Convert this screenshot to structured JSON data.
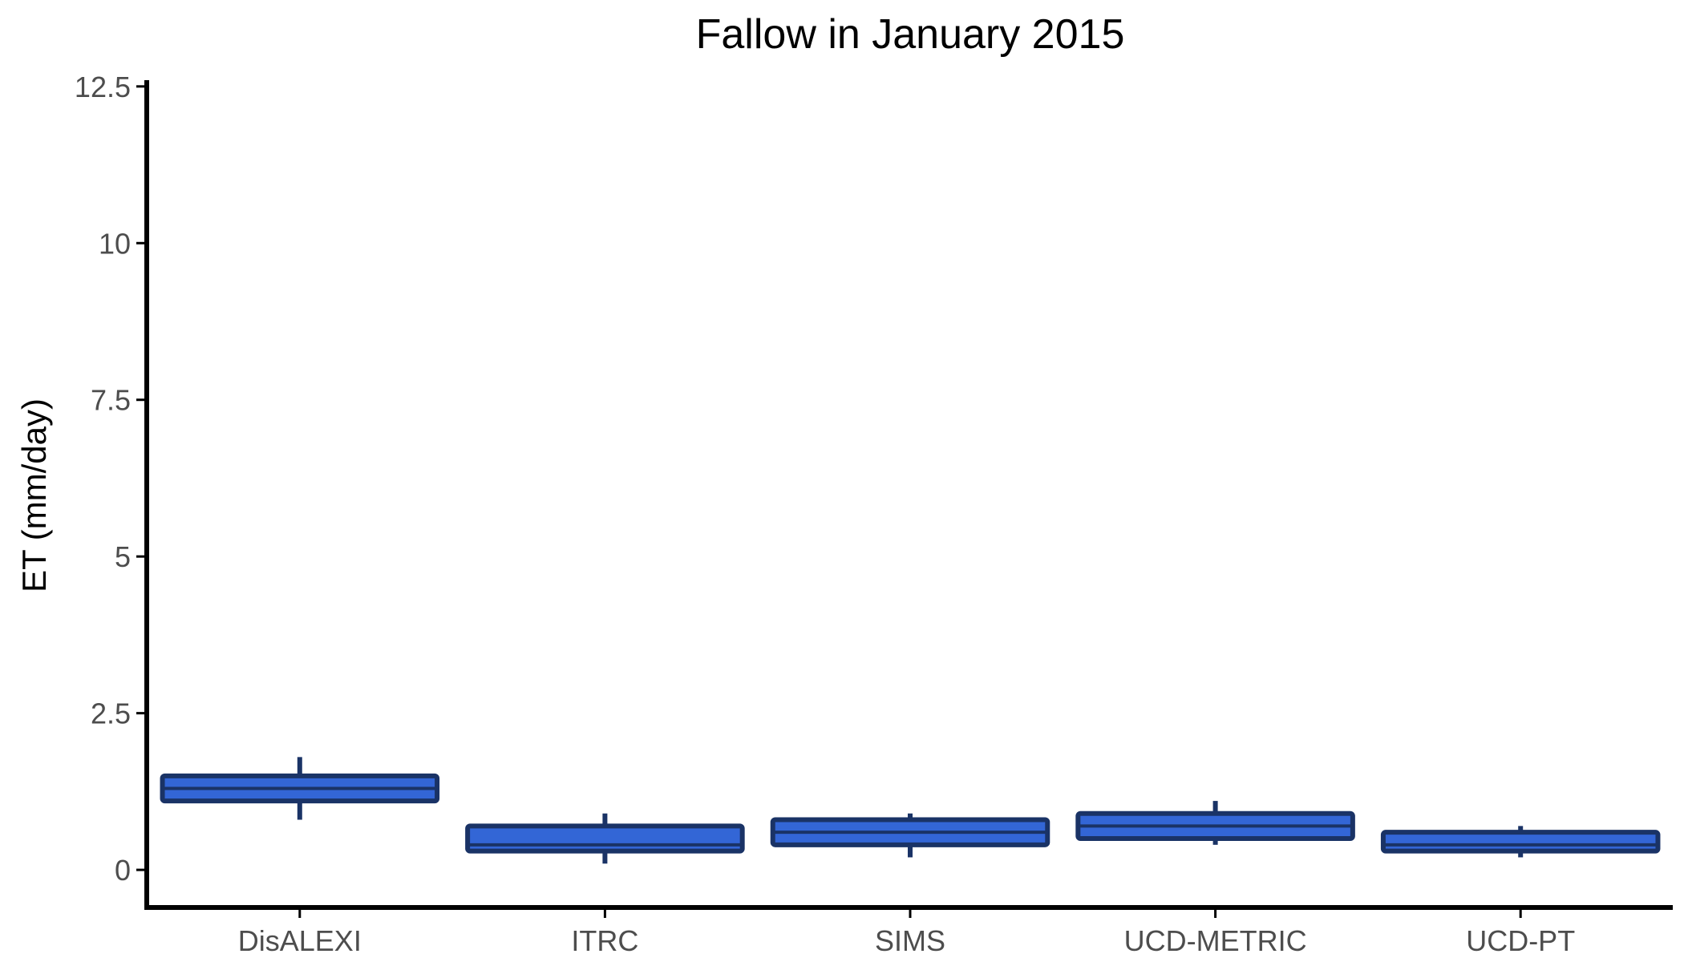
{
  "chart_data": {
    "type": "boxplot",
    "title": "Fallow in January 2015",
    "xlabel": "",
    "ylabel": "ET (mm/day)",
    "ylim": [
      -0.6,
      12.6
    ],
    "yticks": [
      0,
      2.5,
      5,
      7.5,
      10,
      12.5
    ],
    "ytick_labels": [
      "0",
      "2.5",
      "5",
      "7.5",
      "10",
      "12.5"
    ],
    "grid": false,
    "legend": "none",
    "categories": [
      "DisALEXI",
      "ITRC",
      "SIMS",
      "UCD-METRIC",
      "UCD-PT"
    ],
    "series": [
      {
        "boxes": [
          {
            "category": "DisALEXI",
            "min": 0.8,
            "q1": 1.1,
            "median": 1.3,
            "q3": 1.5,
            "max": 1.8
          },
          {
            "category": "ITRC",
            "min": 0.1,
            "q1": 0.3,
            "median": 0.4,
            "q3": 0.7,
            "max": 0.9
          },
          {
            "category": "SIMS",
            "min": 0.2,
            "q1": 0.4,
            "median": 0.6,
            "q3": 0.8,
            "max": 0.9
          },
          {
            "category": "UCD-METRIC",
            "min": 0.4,
            "q1": 0.5,
            "median": 0.7,
            "q3": 0.9,
            "max": 1.1
          },
          {
            "category": "UCD-PT",
            "min": 0.2,
            "q1": 0.3,
            "median": 0.4,
            "q3": 0.6,
            "max": 0.7
          }
        ]
      }
    ],
    "colors": {
      "box_fill": "#3366d6",
      "box_stroke": "#1a3366",
      "axis": "#000000",
      "tick_text": "#4d4d4d"
    }
  }
}
